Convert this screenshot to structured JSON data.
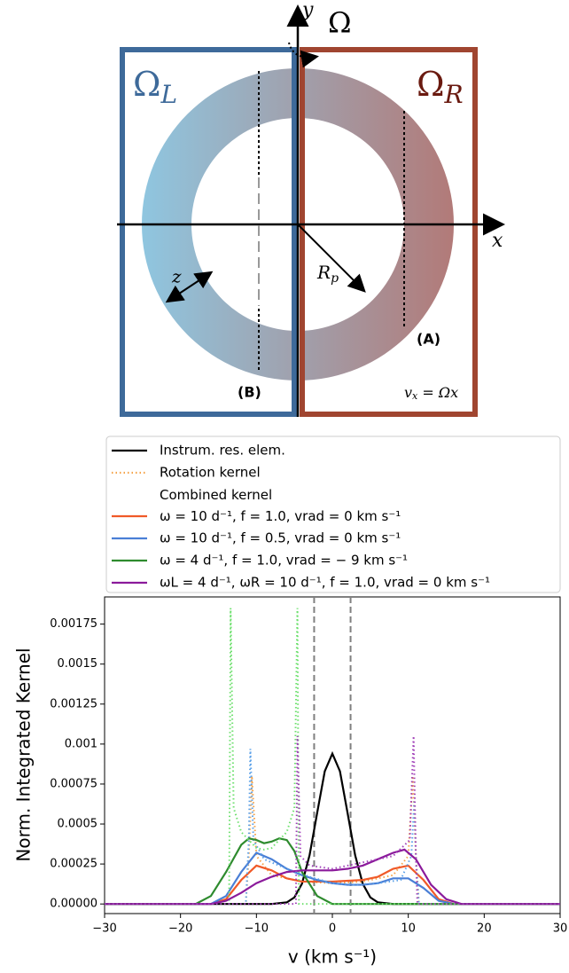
{
  "diagram": {
    "omega_L": {
      "base": "Ω",
      "sub": "L"
    },
    "omega_R": {
      "base": "Ω",
      "sub": "R"
    },
    "omega": "Ω",
    "y_axis": "y",
    "x_axis": "x",
    "radius": {
      "base": "R",
      "sub": "p"
    },
    "depth": "z",
    "label_a": "(A)",
    "label_b": "(B)",
    "velocity": {
      "base": "v",
      "sub": "x",
      "rest": " = Ωx"
    }
  },
  "chart_data": {
    "type": "line",
    "x_label": "v (km s⁻¹)",
    "y_label": "Norm. Integrated Kernel",
    "xlim": [
      -30,
      30
    ],
    "ylim": [
      -6e-05,
      0.00192
    ],
    "xticks": [
      {
        "value": -30,
        "label": "−30"
      },
      {
        "value": -20,
        "label": "−20"
      },
      {
        "value": -10,
        "label": "−10"
      },
      0,
      10,
      20,
      30
    ],
    "yticks": [
      {
        "value": 0,
        "label": "0.00000"
      },
      0.00025,
      0.0005,
      0.00075,
      0.001,
      0.00125,
      0.0015,
      0.00175
    ],
    "vlines": [
      -2.4,
      2.4
    ],
    "vline_color": "#808080",
    "series": [
      {
        "name": "Instrum. res. elem.",
        "color": "#000000",
        "style": "solid",
        "x": [
          -30,
          -8,
          -6,
          -5,
          -4,
          -3,
          -2,
          -1,
          0,
          1,
          2,
          3,
          4,
          5,
          6,
          8,
          30
        ],
        "values": [
          0,
          0,
          1e-05,
          4.1e-05,
          0.000127,
          0.000305,
          0.00057,
          0.00083,
          0.00094,
          0.00083,
          0.00057,
          0.000305,
          0.000127,
          4.1e-05,
          1e-05,
          0,
          0
        ]
      },
      {
        "name": "Rotation kernel",
        "color": "#f5a34a",
        "style": "dotted",
        "x": [
          -30,
          -11.4,
          -11,
          -10.6,
          -10,
          -8,
          -4,
          0,
          4,
          8,
          10,
          10.6,
          11,
          11.4,
          30
        ],
        "values": [
          0,
          0,
          0.0003,
          0.0008,
          0.0003,
          0.00018,
          0.00014,
          0.00013,
          0.00014,
          0.00018,
          0.0003,
          0.0008,
          0.0003,
          0,
          0
        ]
      },
      {
        "name": "Combined kernel\nω =  10 d⁻¹, f = 1.0, vrad = 0 km s⁻¹",
        "color": "#f05a28",
        "style": "solid",
        "x": [
          -30,
          -16,
          -14,
          -12,
          -10,
          -8,
          -6,
          -4,
          0,
          4,
          6,
          8,
          10,
          12,
          14,
          16,
          30
        ],
        "values": [
          0,
          0,
          3e-05,
          0.00015,
          0.00024,
          0.00021,
          0.00016,
          0.00014,
          0.00014,
          0.00015,
          0.00017,
          0.00022,
          0.00024,
          0.00015,
          3e-05,
          0,
          0
        ]
      },
      {
        "name": "ω =  10 d⁻¹, f = 0.5, vrad = 0 km s⁻¹",
        "color": "#4a7fd6",
        "style": "solid",
        "x": [
          -30,
          -16,
          -14,
          -12,
          -10,
          -8,
          -6,
          -4,
          -2,
          0,
          2,
          4,
          6,
          8,
          10,
          12,
          14,
          16,
          30
        ],
        "values": [
          0,
          0,
          5e-05,
          0.0002,
          0.00032,
          0.00028,
          0.00022,
          0.00018,
          0.00015,
          0.00013,
          0.00012,
          0.00012,
          0.00013,
          0.00016,
          0.00016,
          0.0001,
          2e-05,
          0,
          0
        ]
      },
      {
        "color": "#5aa0e8",
        "style": "dotted",
        "x": [
          -30,
          -11.4,
          -11,
          -10.8,
          -10.4,
          -9,
          -6,
          -3,
          0,
          3,
          6,
          9,
          10.4,
          10.8,
          11,
          11.4,
          30
        ],
        "values": [
          0,
          0,
          0.0004,
          0.00097,
          0.0004,
          0.00028,
          0.00022,
          0.00017,
          0.00013,
          0.00012,
          0.00013,
          0.00015,
          0.0003,
          0.00065,
          0.0003,
          0,
          0
        ]
      },
      {
        "name": "ω =  4 d⁻¹, f = 1.0, vrad = − 9 km s⁻¹",
        "color": "#2e8b2e",
        "style": "solid",
        "x": [
          -30,
          -18,
          -16,
          -14,
          -12,
          -11,
          -10,
          -9,
          -8,
          -7,
          -6,
          -5,
          -4,
          -2,
          0,
          30
        ],
        "values": [
          0,
          0,
          5e-05,
          0.0002,
          0.00037,
          0.00041,
          0.0004,
          0.00038,
          0.00039,
          0.00041,
          0.0004,
          0.00033,
          0.0002,
          5e-05,
          0,
          0
        ]
      },
      {
        "color": "#6ee06e",
        "style": "dotted",
        "x": [
          -30,
          -13.6,
          -13.4,
          -13,
          -12,
          -10,
          -9,
          -8,
          -6,
          -5,
          -4.6,
          -4.4,
          30
        ],
        "values": [
          0,
          0,
          0.00185,
          0.0006,
          0.00045,
          0.00035,
          0.00034,
          0.00035,
          0.00045,
          0.0006,
          0.00185,
          0,
          0
        ]
      },
      {
        "name": "ωL =  4 d⁻¹, ωR =  10 d⁻¹, f = 1.0, vrad = 0 km s⁻¹",
        "color": "#8b1a9b",
        "style": "solid",
        "x": [
          -30,
          -16,
          -14,
          -12,
          -10,
          -8,
          -6,
          -4,
          -2,
          0,
          2,
          4,
          6,
          8,
          9.5,
          11,
          13,
          15,
          17,
          30
        ],
        "values": [
          0,
          0,
          2e-05,
          7e-05,
          0.00013,
          0.00017,
          0.0002,
          0.00021,
          0.00021,
          0.00021,
          0.00022,
          0.00024,
          0.00028,
          0.00032,
          0.00034,
          0.00028,
          0.00012,
          3e-05,
          0,
          0
        ]
      },
      {
        "color": "#a040b8",
        "style": "dotted",
        "x": [
          -30,
          -4.8,
          -4.6,
          -4.2,
          -3,
          0,
          4,
          8,
          10.2,
          10.7,
          11,
          11.2,
          30
        ],
        "values": [
          0,
          0,
          0.00105,
          0.0003,
          0.00024,
          0.00022,
          0.00026,
          0.0003,
          0.0004,
          0.00105,
          0.0003,
          0,
          0
        ]
      }
    ]
  }
}
